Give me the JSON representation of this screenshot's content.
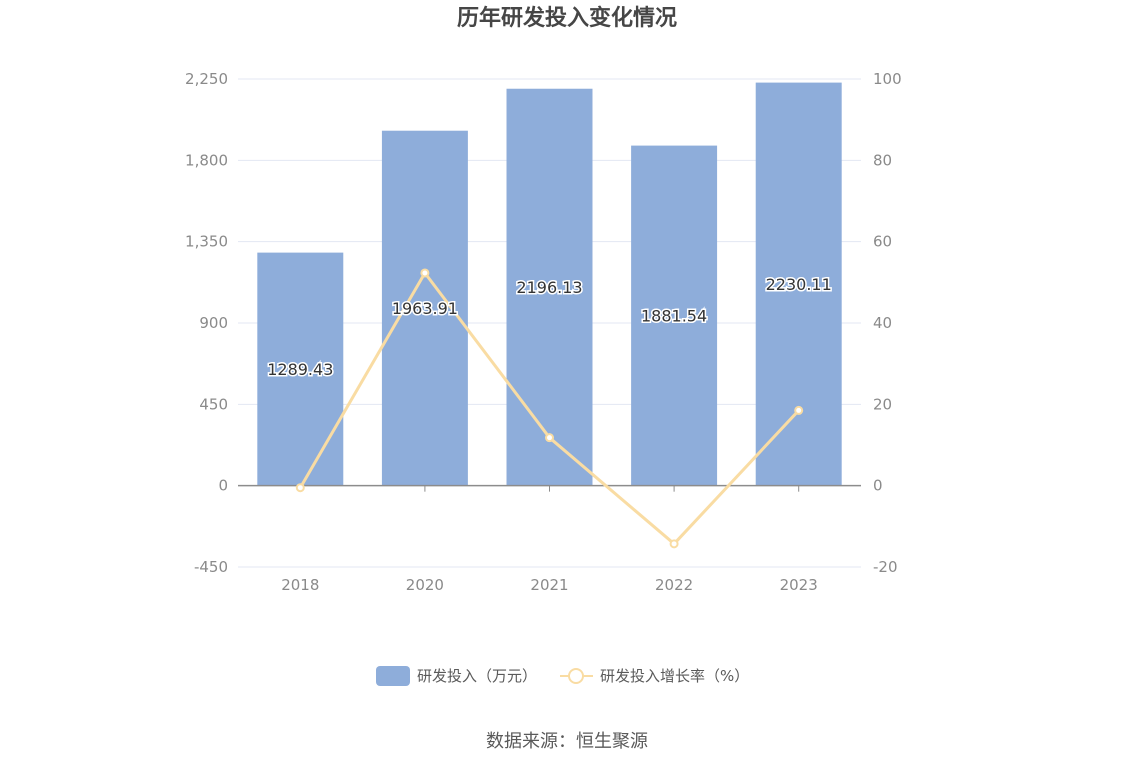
{
  "chart_data": {
    "type": "bar",
    "title": "历年研发投入变化情况",
    "categories": [
      "2018",
      "2020",
      "2021",
      "2022",
      "2023"
    ],
    "series": [
      {
        "name": "研发投入（万元）",
        "type": "bar",
        "axis": "left",
        "color": "#8eadda",
        "values": [
          1289.43,
          1963.91,
          2196.13,
          1881.54,
          2230.11
        ],
        "labels": [
          "1289.43",
          "1963.91",
          "2196.13",
          "1881.54",
          "2230.11"
        ]
      },
      {
        "name": "研发投入增长率（%）",
        "type": "line",
        "axis": "right",
        "color": "#f9dca3",
        "values": [
          -0.5,
          52.3,
          11.8,
          -14.3,
          18.5
        ]
      }
    ],
    "y_left": {
      "ylim": [
        -450,
        2250
      ],
      "ticks": [
        -450,
        0,
        450,
        900,
        1350,
        1800,
        2250
      ],
      "tick_labels": [
        "-450",
        "0",
        "450",
        "900",
        "1,350",
        "1,800",
        "2,250"
      ]
    },
    "y_right": {
      "ylim": [
        -20,
        100
      ],
      "ticks": [
        -20,
        0,
        20,
        40,
        60,
        80,
        100
      ],
      "tick_labels": [
        "-20",
        "0",
        "20",
        "40",
        "60",
        "80",
        "100"
      ]
    },
    "grid": true,
    "legend_position": "bottom-center",
    "source": "数据来源：恒生聚源"
  }
}
